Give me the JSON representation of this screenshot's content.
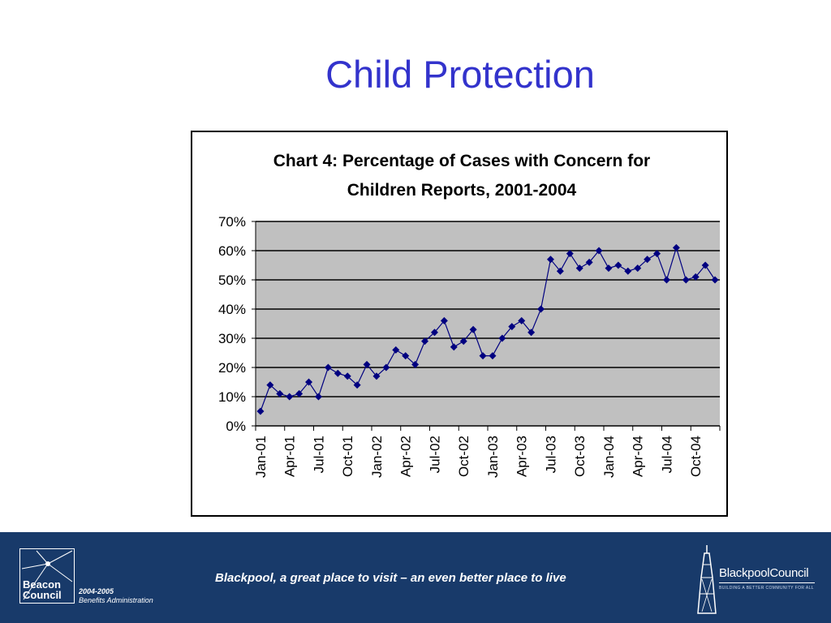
{
  "slide": {
    "title": "Child Protection"
  },
  "chart_data": {
    "type": "line",
    "title_line1": "Chart 4: Percentage of Cases with Concern for",
    "title_line2": "Children Reports, 2001-2004",
    "ylim": [
      0,
      70
    ],
    "y_ticks": [
      "0%",
      "10%",
      "20%",
      "30%",
      "40%",
      "50%",
      "60%",
      "70%"
    ],
    "x_tick_labels": [
      "Jan-01",
      "Apr-01",
      "Jul-01",
      "Oct-01",
      "Jan-02",
      "Apr-02",
      "Jul-02",
      "Oct-02",
      "Jan-03",
      "Apr-03",
      "Jul-03",
      "Oct-03",
      "Jan-04",
      "Apr-04",
      "Jul-04",
      "Oct-04"
    ],
    "grid": true,
    "legend": "none",
    "colors": {
      "series": "#000080",
      "plot_bg": "#c0c0c0"
    },
    "series": [
      {
        "values": [
          5,
          14,
          11,
          10,
          11,
          15,
          10,
          20,
          18,
          17,
          14,
          21,
          17,
          20,
          26,
          24,
          21,
          29,
          32,
          36,
          27,
          29,
          33,
          24,
          24,
          30,
          34,
          36,
          32,
          40,
          57,
          53,
          59,
          54,
          56,
          60,
          54,
          55,
          53,
          54,
          57,
          59,
          50,
          61,
          50,
          51,
          55,
          50
        ]
      }
    ]
  },
  "footer": {
    "tagline": "Blackpool, a great place to visit – an even better place to live",
    "beacon_line1": "Beacon",
    "beacon_line2": "Council",
    "beacon_year": "2004-2005",
    "beacon_sub": "Benefits Administration",
    "council_name": "BlackpoolCouncil",
    "council_motto": "BUILDING A BETTER COMMUNITY FOR ALL"
  }
}
